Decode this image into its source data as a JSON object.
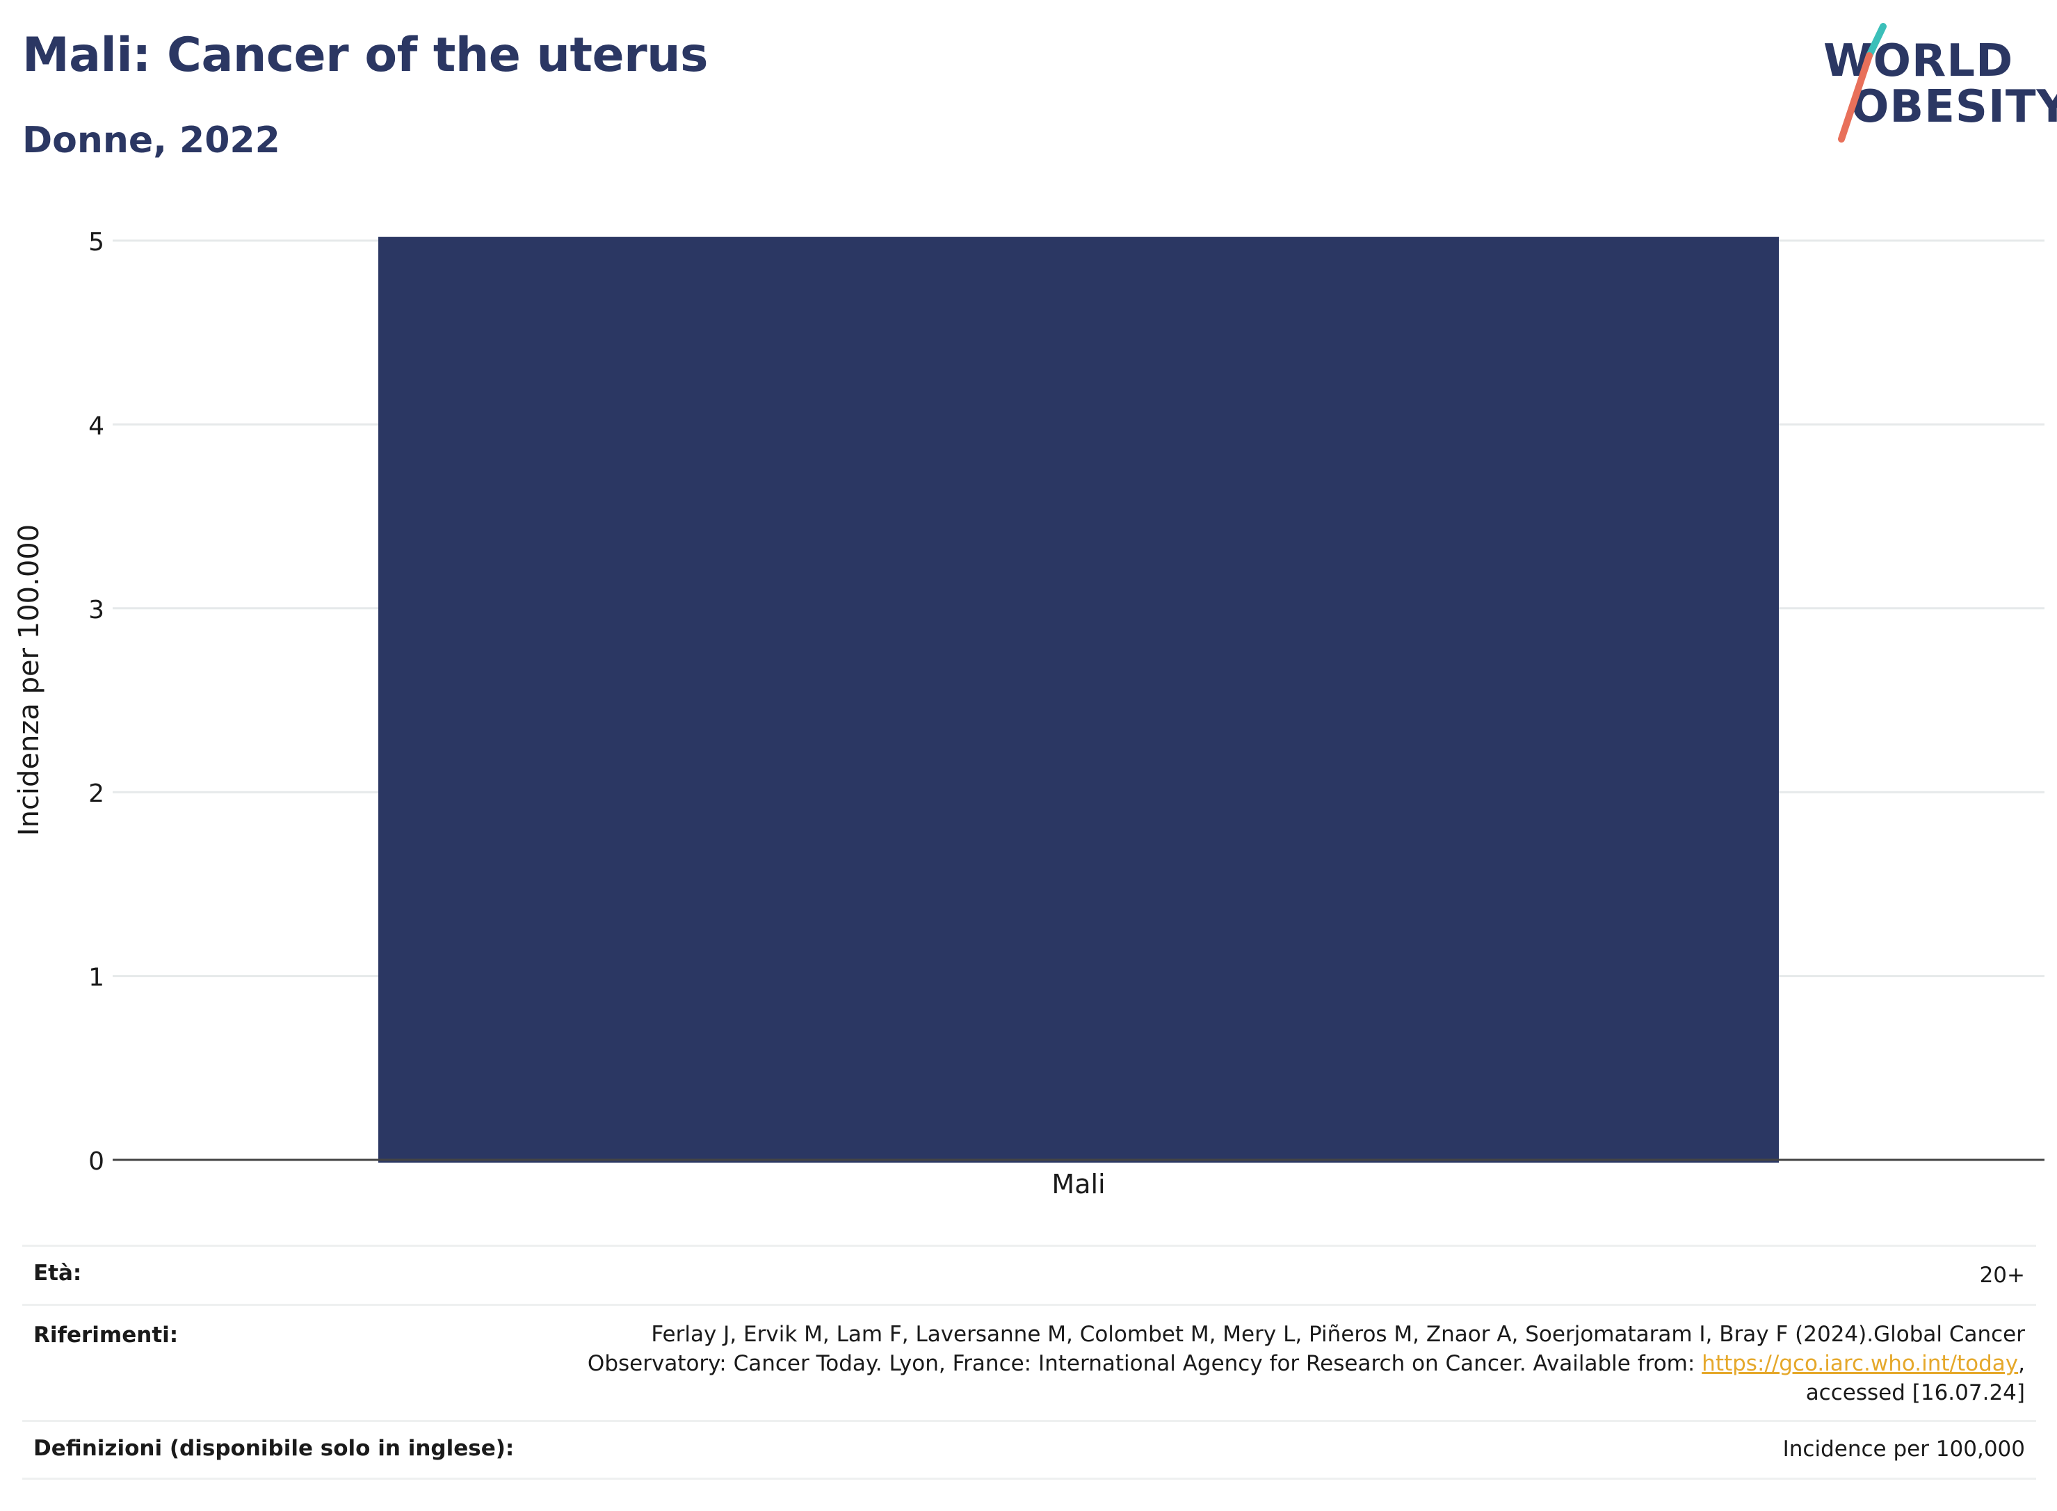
{
  "header": {
    "title": "Mali: Cancer of the uterus",
    "subtitle": "Donne, 2022"
  },
  "logo": {
    "line1": "WORLD",
    "line2": "OBESITY",
    "colors": {
      "text": "#2b3763",
      "slash_top": "#3bbfb9",
      "slash_bottom": "#e8705a"
    }
  },
  "chart_data": {
    "type": "bar",
    "categories": [
      "Mali"
    ],
    "values": [
      5.02
    ],
    "title": "Mali: Cancer of the uterus",
    "xlabel": "",
    "ylabel": "Incidenza per 100.000",
    "ylim": [
      0,
      5
    ],
    "yticks": [
      0,
      1,
      2,
      3,
      4,
      5
    ],
    "grid": true,
    "bar_color": "#2b3763"
  },
  "meta": {
    "age_label": "Età:",
    "age_value": "20+",
    "ref_label": "Riferimenti:",
    "ref_line1": "Ferlay J, Ervik M, Lam F, Laversanne M, Colombet M, Mery L, Piñeros M, Znaor A, Soerjomataram I, Bray F (2024).Global Cancer",
    "ref_line2_pre": "Observatory: Cancer Today. Lyon, France: International Agency for Research on Cancer. Available from: ",
    "ref_link": "https://gco.iarc.who.int/today",
    "ref_line2_post": ",",
    "ref_line3": "accessed [16.07.24]",
    "def_label": "Definizioni (disponibile solo in inglese):",
    "def_value": "Incidence per 100,000"
  }
}
